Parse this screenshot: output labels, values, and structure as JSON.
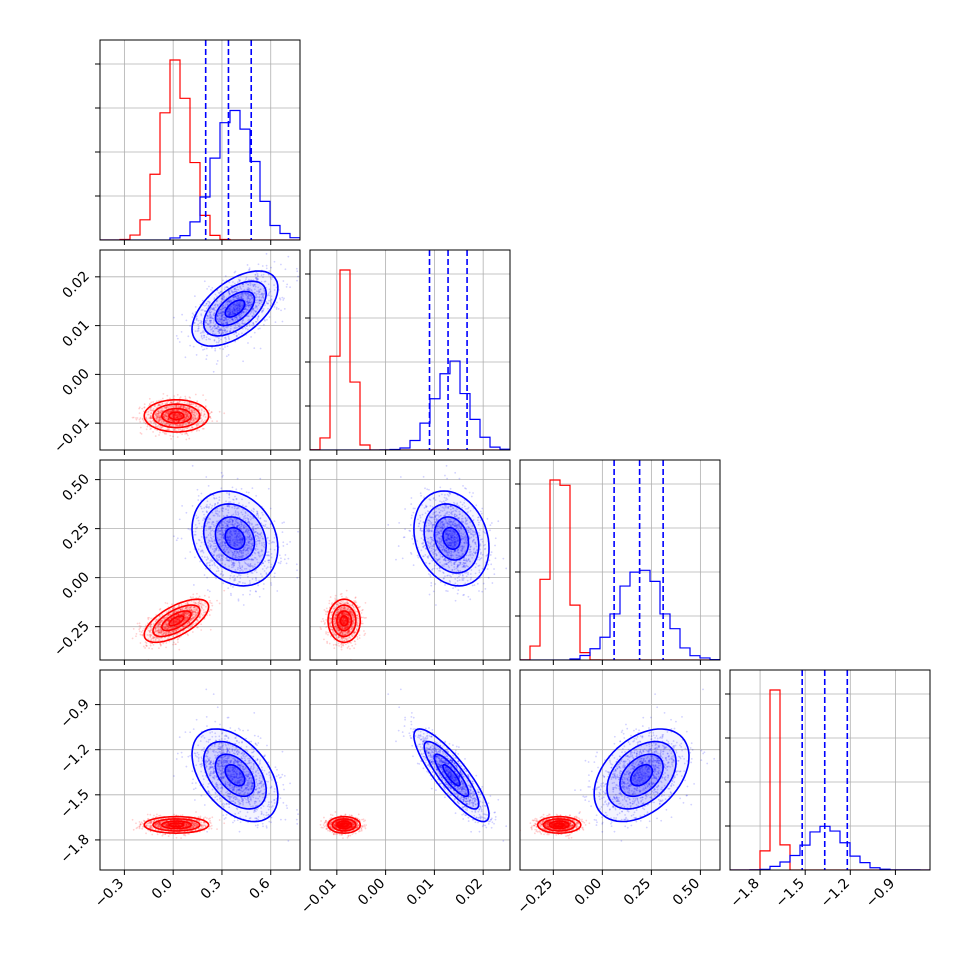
{
  "chart_data": {
    "type": "corner",
    "title": "",
    "parameters": [
      {
        "range": [
          -0.45,
          0.78
        ],
        "ticks": [
          -0.3,
          0.0,
          0.3,
          0.6
        ],
        "tick_labels": [
          "−0.3",
          "0.0",
          "0.3",
          "0.6"
        ]
      },
      {
        "range": [
          -0.0155,
          0.0255
        ],
        "ticks": [
          -0.01,
          0.0,
          0.01,
          0.02
        ],
        "tick_labels": [
          "−0.01",
          "0.00",
          "0.01",
          "0.02"
        ]
      },
      {
        "range": [
          -0.42,
          0.6
        ],
        "ticks": [
          -0.25,
          0.0,
          0.25,
          0.5
        ],
        "tick_labels": [
          "−0.25",
          "0.00",
          "0.25",
          "0.50"
        ]
      },
      {
        "range": [
          -2.0,
          -0.67
        ],
        "ticks": [
          -1.8,
          -1.5,
          -1.2,
          -0.9
        ],
        "tick_labels": [
          "−1.8",
          "−1.5",
          "−1.2",
          "−0.9"
        ]
      }
    ],
    "series": [
      {
        "color": "#ff0000",
        "means": [
          0.02,
          -0.0085,
          -0.22,
          -1.7
        ],
        "stds": [
          0.09,
          0.0015,
          0.05,
          0.025
        ],
        "corr": [
          [
            1,
            0,
            0.65,
            0
          ],
          [
            0,
            1,
            0,
            0
          ],
          [
            0.65,
            0,
            1,
            0
          ],
          [
            0,
            0,
            0,
            1
          ]
        ],
        "quantiles": null
      },
      {
        "color": "#0000ff",
        "means": [
          0.38,
          0.0135,
          0.2,
          -1.37
        ],
        "stds": [
          0.12,
          0.0035,
          0.11,
          0.14
        ],
        "corr": [
          [
            1,
            0.55,
            -0.2,
            -0.45
          ],
          [
            0.55,
            1,
            -0.2,
            -0.85
          ],
          [
            -0.2,
            -0.2,
            1,
            0.4
          ],
          [
            -0.45,
            -0.85,
            0.4,
            1
          ]
        ],
        "quantiles": [
          [
            0.2,
            0.34,
            0.48
          ],
          [
            0.009,
            0.0128,
            0.0167
          ],
          [
            0.06,
            0.19,
            0.31
          ],
          [
            -1.52,
            -1.37,
            -1.22
          ]
        ]
      }
    ],
    "grid": true,
    "legend": null
  }
}
